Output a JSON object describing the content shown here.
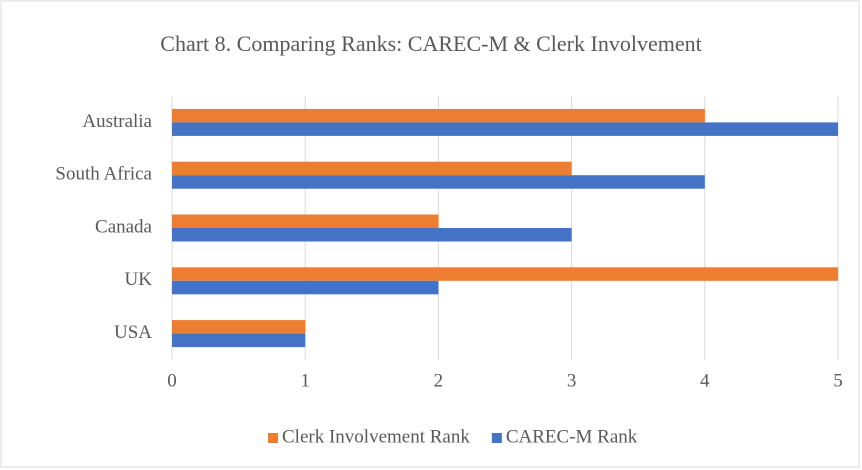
{
  "chart_data": {
    "type": "bar",
    "orientation": "horizontal",
    "title": "Chart 8. Comparing Ranks: CAREC-M & Clerk Involvement",
    "categories": [
      "Australia",
      "South Africa",
      "Canada",
      "UK",
      "USA"
    ],
    "series": [
      {
        "name": "Clerk Involvement Rank",
        "color": "#ed7d31",
        "values": [
          4,
          3,
          2,
          5,
          1
        ]
      },
      {
        "name": "CAREC-M Rank",
        "color": "#4472c4",
        "values": [
          5,
          4,
          3,
          2,
          1
        ]
      }
    ],
    "xlim": [
      0,
      5
    ],
    "xticks": [
      0,
      1,
      2,
      3,
      4,
      5
    ],
    "grid": true,
    "legend": "bottom"
  }
}
